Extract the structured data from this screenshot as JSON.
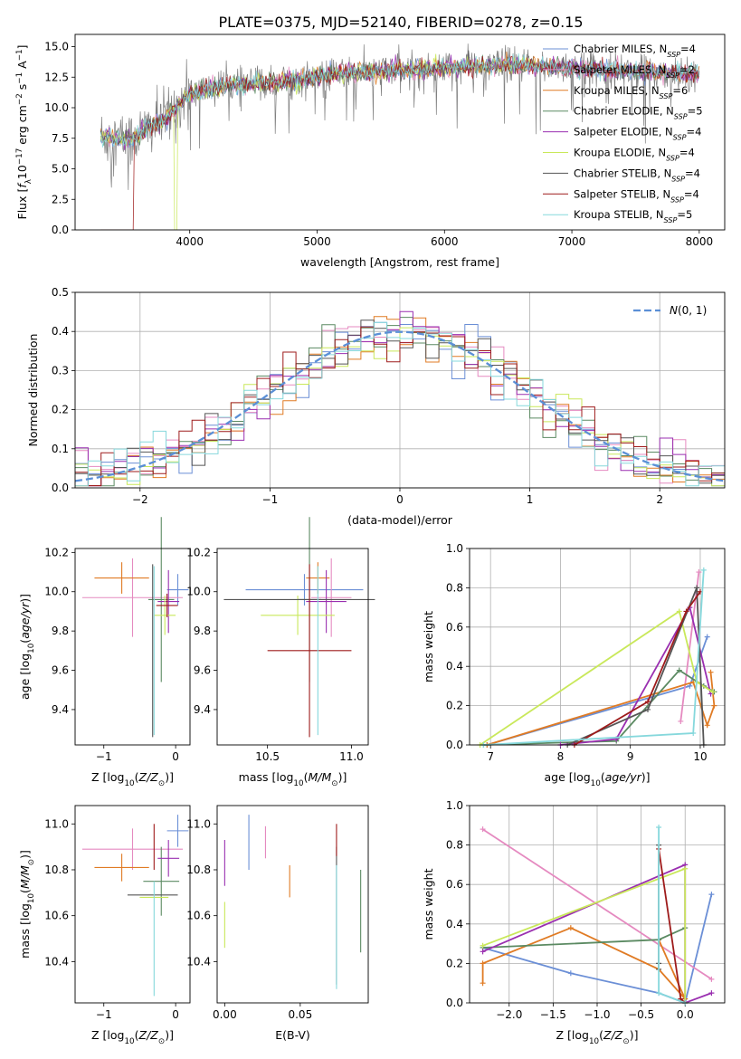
{
  "figure": {
    "title": "PLATE=0375, MJD=52140, FIBERID=0278, z=0.15"
  },
  "chart_data": [
    {
      "id": "spectrum",
      "type": "line",
      "xlabel": "wavelength [Angstrom, rest frame]",
      "ylabel": "Flux [fλ10⁻¹⁷ erg cm⁻² s⁻¹ A⁻¹]",
      "xlim": [
        3100,
        8200
      ],
      "ylim": [
        0,
        16
      ],
      "xticks": [
        4000,
        5000,
        6000,
        7000,
        8000
      ],
      "yticks": [
        0.0,
        2.5,
        5.0,
        7.5,
        10.0,
        12.5,
        15.0
      ],
      "grid": false,
      "legend_position": "right",
      "data_series": {
        "name": "",
        "color": "#7f7f7f",
        "x_range": [
          3300,
          8000
        ],
        "trend": [
          [
            3300,
            7.6
          ],
          [
            3550,
            7.4
          ],
          [
            3650,
            8.2
          ],
          [
            3800,
            9.0
          ],
          [
            4000,
            11.2
          ],
          [
            4300,
            11.8
          ],
          [
            4800,
            12.2
          ],
          [
            5200,
            12.8
          ],
          [
            5600,
            13.0
          ],
          [
            6000,
            13.3
          ],
          [
            6500,
            13.5
          ],
          [
            7000,
            13.3
          ],
          [
            7500,
            13.0
          ],
          [
            8000,
            12.8
          ]
        ]
      },
      "series": [
        {
          "name": "Chabrier MILES, N_SSP=4",
          "label_main": "Chabrier MILES, N",
          "label_sub": "SSP",
          "label_tail": "=4",
          "color": "#6b8fd6"
        },
        {
          "name": "Salpeter MILES, N_SSP=2",
          "label_main": "Salpeter MILES, N",
          "label_sub": "SSP",
          "label_tail": "=2",
          "color": "#e58ac0"
        },
        {
          "name": "Kroupa MILES, N_SSP=6",
          "label_main": "Kroupa MILES, N",
          "label_sub": "SSP",
          "label_tail": "=6",
          "color": "#e07b24"
        },
        {
          "name": "Chabrier ELODIE, N_SSP=5",
          "label_main": "Chabrier ELODIE, N",
          "label_sub": "SSP",
          "label_tail": "=5",
          "color": "#5b8a62"
        },
        {
          "name": "Salpeter ELODIE, N_SSP=4",
          "label_main": "Salpeter ELODIE, N",
          "label_sub": "SSP",
          "label_tail": "=4",
          "color": "#9a2fb0"
        },
        {
          "name": "Kroupa ELODIE, N_SSP=4",
          "label_main": "Kroupa ELODIE, N",
          "label_sub": "SSP",
          "label_tail": "=4",
          "color": "#c9e85a"
        },
        {
          "name": "Chabrier STELIB, N_SSP=4",
          "label_main": "Chabrier STELIB, N",
          "label_sub": "SSP",
          "label_tail": "=4",
          "color": "#555555"
        },
        {
          "name": "Salpeter STELIB, N_SSP=4",
          "label_main": "Salpeter STELIB, N",
          "label_sub": "SSP",
          "label_tail": "=4",
          "color": "#9e1b1b"
        },
        {
          "name": "Kroupa STELIB, N_SSP=5",
          "label_main": "Kroupa STELIB, N",
          "label_sub": "SSP",
          "label_tail": "=5",
          "color": "#86d8dc"
        }
      ]
    },
    {
      "id": "residuals",
      "type": "histogram",
      "xlabel": "(data-model)/error",
      "ylabel": "Normed distribution",
      "xlim": [
        -2.5,
        2.5
      ],
      "ylim": [
        0,
        0.5
      ],
      "xticks": [
        -2,
        -1,
        0,
        1,
        2
      ],
      "yticks": [
        0.0,
        0.1,
        0.2,
        0.3,
        0.4,
        0.5
      ],
      "grid": true,
      "legend_position": "top-right",
      "bins": 50,
      "reference_curve": {
        "name": "N(0,1)",
        "type": "gaussian",
        "mean": 0,
        "sigma": 1,
        "color": "#5b8fd6"
      }
    },
    {
      "id": "age-vs-Z",
      "type": "errorbar",
      "xlabel": "Z [log10(Z/Z⊙)]",
      "ylabel": "age  [log10(age/yr)]",
      "xlim": [
        -1.4,
        0.2
      ],
      "ylim": [
        9.22,
        10.22
      ],
      "xticks": [
        -1,
        0
      ],
      "yticks": [
        9.4,
        9.6,
        9.8,
        10.0,
        10.2
      ],
      "points": [
        {
          "x": 0.03,
          "xerr": 0.15,
          "y": 10.01,
          "yerr": 0.08,
          "color": "#6b8fd6"
        },
        {
          "x": -0.6,
          "xerr": 0.7,
          "y": 9.97,
          "yerr": 0.2,
          "color": "#e58ac0"
        },
        {
          "x": -0.75,
          "xerr": 0.38,
          "y": 10.07,
          "yerr": 0.08,
          "color": "#e07b24"
        },
        {
          "x": -0.2,
          "xerr": 0.18,
          "y": 9.96,
          "yerr": 0.42,
          "color": "#5b8a62"
        },
        {
          "x": -0.1,
          "xerr": 0.15,
          "y": 9.95,
          "yerr": 0.16,
          "color": "#9a2fb0"
        },
        {
          "x": -0.15,
          "xerr": 0.15,
          "y": 9.88,
          "yerr": 0.1,
          "color": "#c9e85a"
        },
        {
          "x": -0.32,
          "xerr": 0.0,
          "y": 9.7,
          "yerr": 0.44,
          "color": "#555555"
        },
        {
          "x": -0.12,
          "xerr": 0.15,
          "y": 9.93,
          "yerr": 0.06,
          "color": "#9e1b1b"
        },
        {
          "x": -0.3,
          "xerr": 0.0,
          "y": 9.7,
          "yerr": 0.43,
          "color": "#86d8dc"
        }
      ]
    },
    {
      "id": "age-vs-mass",
      "type": "errorbar",
      "xlabel": "mass [log10(M/M⊙)]",
      "ylabel": "",
      "xlim": [
        10.2,
        11.1
      ],
      "ylim": [
        9.22,
        10.22
      ],
      "xticks": [
        10.5,
        11.0
      ],
      "yticks": [
        9.4,
        9.6,
        9.8,
        10.0,
        10.2
      ],
      "points": [
        {
          "x": 10.72,
          "xerr": 0.35,
          "y": 10.01,
          "yerr": 0.08,
          "color": "#6b8fd6"
        },
        {
          "x": 10.88,
          "xerr": 0.12,
          "y": 9.97,
          "yerr": 0.2,
          "color": "#e58ac0"
        },
        {
          "x": 10.8,
          "xerr": 0.07,
          "y": 10.07,
          "yerr": 0.08,
          "color": "#e07b24"
        },
        {
          "x": 10.75,
          "xerr": 0.07,
          "y": 9.96,
          "yerr": 0.42,
          "color": "#5b8a62"
        },
        {
          "x": 10.85,
          "xerr": 0.12,
          "y": 9.95,
          "yerr": 0.16,
          "color": "#9a2fb0"
        },
        {
          "x": 10.68,
          "xerr": 0.22,
          "y": 9.88,
          "yerr": 0.1,
          "color": "#c9e85a"
        },
        {
          "x": 10.69,
          "xerr": 0.45,
          "y": 9.96,
          "yerr": 0.0,
          "color": "#555555"
        },
        {
          "x": 10.75,
          "xerr": 0.25,
          "y": 9.7,
          "yerr": 0.44,
          "color": "#9e1b1b"
        },
        {
          "x": 10.8,
          "xerr": 0.0,
          "y": 9.7,
          "yerr": 0.43,
          "color": "#86d8dc"
        }
      ]
    },
    {
      "id": "weight-vs-age",
      "type": "line",
      "xlabel": "age  [log10(age/yr)]",
      "ylabel": "mass weight",
      "xlim": [
        6.7,
        10.35
      ],
      "ylim": [
        0,
        1
      ],
      "xticks": [
        7,
        8,
        9,
        10
      ],
      "yticks": [
        0.0,
        0.2,
        0.4,
        0.6,
        0.8,
        1.0
      ],
      "grid": true,
      "series": [
        {
          "name": "Chabrier MILES",
          "color": "#6b8fd6",
          "x": [
            6.95,
            9.85,
            10.1
          ],
          "y": [
            0.0,
            0.3,
            0.55
          ]
        },
        {
          "name": "Salpeter MILES",
          "color": "#e58ac0",
          "x": [
            9.72,
            9.98
          ],
          "y": [
            0.12,
            0.88
          ]
        },
        {
          "name": "Kroupa MILES",
          "color": "#e07b24",
          "x": [
            6.95,
            9.9,
            10.1,
            10.2,
            10.15
          ],
          "y": [
            0.0,
            0.32,
            0.1,
            0.2,
            0.37
          ]
        },
        {
          "name": "Chabrier ELODIE",
          "color": "#5b8a62",
          "x": [
            6.9,
            8.8,
            9.7,
            10.05,
            10.2
          ],
          "y": [
            0.0,
            0.02,
            0.38,
            0.3,
            0.27
          ]
        },
        {
          "name": "Salpeter ELODIE",
          "color": "#9a2fb0",
          "x": [
            8.0,
            8.8,
            9.85,
            10.15
          ],
          "y": [
            0.0,
            0.03,
            0.7,
            0.26
          ]
        },
        {
          "name": "Kroupa ELODIE",
          "color": "#c9e85a",
          "x": [
            6.85,
            9.7,
            9.95,
            10.18
          ],
          "y": [
            0.0,
            0.68,
            0.32,
            0.27
          ]
        },
        {
          "name": "Chabrier STELIB",
          "color": "#555555",
          "x": [
            8.1,
            9.25,
            9.95,
            10.05
          ],
          "y": [
            0.0,
            0.18,
            0.8,
            0.0
          ]
        },
        {
          "name": "Salpeter STELIB",
          "color": "#9e1b1b",
          "x": [
            8.2,
            9.25,
            9.8,
            10.0
          ],
          "y": [
            0.0,
            0.22,
            0.68,
            0.78
          ]
        },
        {
          "name": "Kroupa STELIB",
          "color": "#86d8dc",
          "x": [
            6.9,
            9.9,
            10.05
          ],
          "y": [
            0.0,
            0.06,
            0.89
          ]
        }
      ]
    },
    {
      "id": "mass-vs-Z",
      "type": "errorbar",
      "xlabel": "Z [log10(Z/Z⊙)]",
      "ylabel": "mass [log10(M/M⊙)]",
      "xlim": [
        -1.4,
        0.2
      ],
      "ylim": [
        10.22,
        11.08
      ],
      "xticks": [
        -1,
        0
      ],
      "yticks": [
        10.4,
        10.6,
        10.8,
        11.0
      ],
      "points": [
        {
          "x": 0.03,
          "xerr": 0.15,
          "y": 10.97,
          "yerr": 0.07,
          "color": "#6b8fd6"
        },
        {
          "x": -0.6,
          "xerr": 0.7,
          "y": 10.89,
          "yerr": 0.09,
          "color": "#e58ac0"
        },
        {
          "x": -0.75,
          "xerr": 0.38,
          "y": 10.81,
          "yerr": 0.06,
          "color": "#e07b24"
        },
        {
          "x": -0.2,
          "xerr": 0.25,
          "y": 10.75,
          "yerr": 0.15,
          "color": "#5b8a62"
        },
        {
          "x": -0.1,
          "xerr": 0.15,
          "y": 10.85,
          "yerr": 0.08,
          "color": "#9a2fb0"
        },
        {
          "x": -0.3,
          "xerr": 0.2,
          "y": 10.68,
          "yerr": 0.0,
          "color": "#c9e85a"
        },
        {
          "x": -0.32,
          "xerr": 0.35,
          "y": 10.69,
          "yerr": 0.0,
          "color": "#555555"
        },
        {
          "x": -0.3,
          "xerr": 0.0,
          "y": 10.9,
          "yerr": 0.1,
          "color": "#9e1b1b"
        },
        {
          "x": -0.3,
          "xerr": 0.0,
          "y": 10.5,
          "yerr": 0.25,
          "color": "#86d8dc"
        }
      ]
    },
    {
      "id": "mass-vs-ebv",
      "type": "errorbar",
      "xlabel": "E(B-V)",
      "ylabel": "",
      "xlim": [
        -0.005,
        0.095
      ],
      "ylim": [
        10.22,
        11.08
      ],
      "xticks": [
        0.0,
        0.05
      ],
      "xtick_labels": [
        "0.00",
        "0.05"
      ],
      "yticks": [
        10.4,
        10.6,
        10.8,
        11.0
      ],
      "points": [
        {
          "x": 0.016,
          "xerr": 0.0,
          "y": 10.92,
          "yerr": 0.12,
          "color": "#6b8fd6"
        },
        {
          "x": 0.027,
          "xerr": 0.0,
          "y": 10.92,
          "yerr": 0.07,
          "color": "#e58ac0"
        },
        {
          "x": 0.043,
          "xerr": 0.0,
          "y": 10.75,
          "yerr": 0.07,
          "color": "#e07b24"
        },
        {
          "x": 0.09,
          "xerr": 0.0,
          "y": 10.62,
          "yerr": 0.18,
          "color": "#5b8a62"
        },
        {
          "x": 0.0,
          "xerr": 0.0,
          "y": 10.83,
          "yerr": 0.1,
          "color": "#9a2fb0"
        },
        {
          "x": 0.0,
          "xerr": 0.0,
          "y": 10.56,
          "yerr": 0.1,
          "color": "#c9e85a"
        },
        {
          "x": 0.074,
          "xerr": 0.0,
          "y": 10.6,
          "yerr": 0.3,
          "color": "#555555"
        },
        {
          "x": 0.074,
          "xerr": 0.0,
          "y": 10.93,
          "yerr": 0.07,
          "color": "#9e1b1b"
        },
        {
          "x": 0.074,
          "xerr": 0.0,
          "y": 10.55,
          "yerr": 0.27,
          "color": "#86d8dc"
        }
      ]
    },
    {
      "id": "weight-vs-Z",
      "type": "line",
      "xlabel": "Z [log10(Z/Z⊙)]",
      "ylabel": "mass weight",
      "xlim": [
        -2.45,
        0.45
      ],
      "ylim": [
        0,
        1
      ],
      "xticks": [
        -2.0,
        -1.5,
        -1.0,
        -0.5,
        0.0
      ],
      "yticks": [
        0.0,
        0.2,
        0.4,
        0.6,
        0.8,
        1.0
      ],
      "grid": true,
      "series": [
        {
          "name": "Chabrier MILES",
          "color": "#6b8fd6",
          "x": [
            -2.3,
            -1.3,
            -0.3,
            0.0,
            0.3
          ],
          "y": [
            0.28,
            0.15,
            0.05,
            0.0,
            0.55
          ]
        },
        {
          "name": "Salpeter MILES",
          "color": "#e58ac0",
          "x": [
            -2.3,
            0.3
          ],
          "y": [
            0.88,
            0.12
          ]
        },
        {
          "name": "Kroupa MILES",
          "color": "#e07b24",
          "x": [
            -2.3,
            -2.3,
            -1.3,
            -0.3,
            0.0,
            -0.3
          ],
          "y": [
            0.1,
            0.2,
            0.38,
            0.17,
            0.02,
            0.32
          ]
        },
        {
          "name": "Chabrier ELODIE",
          "color": "#5b8a62",
          "x": [
            -2.3,
            -0.3,
            0.0
          ],
          "y": [
            0.28,
            0.32,
            0.38
          ]
        },
        {
          "name": "Salpeter ELODIE",
          "color": "#9a2fb0",
          "x": [
            -2.3,
            0.0,
            0.0,
            0.3
          ],
          "y": [
            0.26,
            0.7,
            0.0,
            0.05
          ]
        },
        {
          "name": "Kroupa ELODIE",
          "color": "#c9e85a",
          "x": [
            -2.3,
            0.0,
            0.0
          ],
          "y": [
            0.29,
            0.68,
            0.0
          ]
        },
        {
          "name": "Chabrier STELIB",
          "color": "#555555",
          "x": [
            -0.3,
            -0.3,
            -0.3
          ],
          "y": [
            0.8,
            0.2,
            0.17
          ]
        },
        {
          "name": "Salpeter STELIB",
          "color": "#9e1b1b",
          "x": [
            -0.3,
            -0.05,
            0.0
          ],
          "y": [
            0.78,
            0.02,
            0.0
          ]
        },
        {
          "name": "Kroupa STELIB",
          "color": "#86d8dc",
          "x": [
            -0.3,
            -0.3,
            0.0
          ],
          "y": [
            0.89,
            0.05,
            0.0
          ]
        }
      ]
    }
  ]
}
